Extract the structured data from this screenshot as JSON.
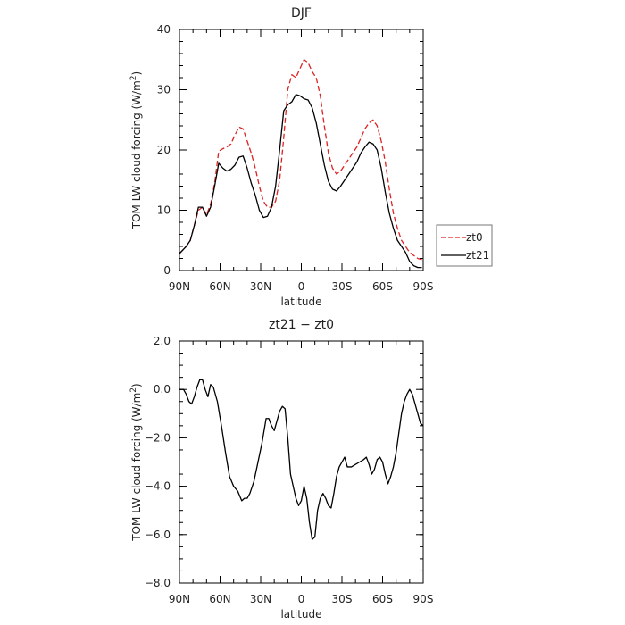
{
  "chart_data": [
    {
      "type": "line",
      "title": "DJF",
      "xlabel": "latitude",
      "ylabel": "TOM LW cloud forcing (W/m",
      "ylabel_sup": "2",
      "ylabel_close": ")",
      "xlim": [
        90,
        -90
      ],
      "ylim": [
        0,
        40
      ],
      "x_ticks": [
        90,
        60,
        30,
        0,
        -30,
        -60,
        -90
      ],
      "x_tick_labels": [
        "90N",
        "60N",
        "30N",
        "0",
        "30S",
        "60S",
        "90S"
      ],
      "y_ticks": [
        0,
        10,
        20,
        30,
        40
      ],
      "y_tick_labels": [
        "0",
        "10",
        "20",
        "30",
        "40"
      ],
      "legend": "outside-right",
      "series": [
        {
          "name": "zt0",
          "color": "#dd2222",
          "dash": "dashed",
          "x": [
            90,
            85,
            82,
            79,
            76,
            73,
            70,
            67,
            64,
            61,
            58,
            55,
            52,
            49,
            46,
            43,
            40,
            37,
            34,
            31,
            28,
            25,
            22,
            19,
            16,
            13,
            10,
            7,
            4,
            1,
            -2,
            -5,
            -8,
            -11,
            -14,
            -17,
            -20,
            -23,
            -26,
            -29,
            -32,
            -35,
            -38,
            -41,
            -44,
            -47,
            -50,
            -53,
            -56,
            -59,
            -62,
            -65,
            -68,
            -71,
            -74,
            -77,
            -80,
            -83,
            -86,
            -89
          ],
          "y": [
            2.8,
            4.0,
            5.0,
            7.5,
            10.0,
            10.5,
            9.2,
            11.0,
            14.5,
            19.8,
            20.2,
            20.5,
            21.0,
            22.5,
            23.8,
            23.5,
            21.5,
            19.5,
            17.0,
            14.0,
            11.5,
            10.5,
            10.5,
            11.5,
            15.0,
            22.0,
            30.0,
            32.5,
            32.0,
            33.5,
            35.0,
            34.5,
            33.0,
            32.0,
            29.0,
            24.0,
            19.5,
            17.0,
            16.0,
            16.5,
            17.5,
            18.5,
            19.5,
            20.5,
            22.0,
            23.5,
            24.5,
            25.0,
            24.0,
            21.5,
            18.0,
            13.5,
            9.5,
            7.0,
            5.0,
            4.0,
            3.0,
            2.5,
            2.0,
            1.8
          ]
        },
        {
          "name": "zt21",
          "color": "#000000",
          "dash": "solid",
          "x": [
            90,
            85,
            82,
            79,
            76,
            73,
            70,
            67,
            64,
            61,
            58,
            55,
            52,
            49,
            46,
            43,
            40,
            37,
            34,
            31,
            28,
            25,
            22,
            19,
            16,
            13,
            10,
            7,
            4,
            1,
            -2,
            -5,
            -8,
            -11,
            -14,
            -17,
            -20,
            -23,
            -26,
            -29,
            -32,
            -35,
            -38,
            -41,
            -44,
            -47,
            -50,
            -53,
            -56,
            -59,
            -62,
            -65,
            -68,
            -71,
            -74,
            -77,
            -80,
            -83,
            -86,
            -89
          ],
          "y": [
            2.8,
            4.0,
            5.0,
            7.5,
            10.5,
            10.5,
            9.0,
            10.5,
            14.0,
            17.8,
            17.0,
            16.5,
            16.8,
            17.5,
            18.8,
            19.0,
            17.0,
            14.5,
            12.5,
            10.0,
            8.8,
            9.0,
            10.5,
            14.0,
            20.0,
            26.5,
            27.5,
            28.0,
            29.2,
            29.0,
            28.5,
            28.3,
            27.0,
            24.5,
            21.0,
            17.5,
            14.8,
            13.5,
            13.2,
            14.0,
            15.0,
            16.0,
            17.0,
            18.0,
            19.5,
            20.5,
            21.3,
            21.0,
            20.0,
            17.0,
            13.0,
            9.5,
            7.0,
            5.0,
            4.0,
            3.0,
            1.5,
            0.8,
            0.5,
            0.5
          ]
        }
      ]
    },
    {
      "type": "line",
      "title": "zt21 − zt0",
      "xlabel": "latitude",
      "ylabel": "TOM LW cloud forcing (W/m",
      "ylabel_sup": "2",
      "ylabel_close": ")",
      "xlim": [
        90,
        -90
      ],
      "ylim": [
        -8,
        2
      ],
      "x_ticks": [
        90,
        60,
        30,
        0,
        -30,
        -60,
        -90
      ],
      "x_tick_labels": [
        "90N",
        "60N",
        "30N",
        "0",
        "30S",
        "60S",
        "90S"
      ],
      "y_ticks": [
        -8,
        -6,
        -4,
        -2,
        0,
        2
      ],
      "y_tick_labels": [
        "−8.0",
        "−6.0",
        "−4.0",
        "−2.0",
        "0.0",
        "2.0"
      ],
      "series": [
        {
          "color": "#000000",
          "dash": "solid",
          "x": [
            90,
            87,
            85,
            83,
            81,
            79,
            77,
            75,
            73,
            71,
            69,
            67,
            65,
            62,
            59,
            56,
            53,
            50,
            47,
            44,
            42,
            40,
            38,
            35,
            32,
            29,
            26,
            24,
            22,
            20,
            18,
            16,
            14,
            12,
            10,
            8,
            6,
            4,
            2,
            0,
            -2,
            -4,
            -6,
            -8,
            -10,
            -12,
            -14,
            -16,
            -18,
            -20,
            -22,
            -24,
            -26,
            -28,
            -30,
            -32,
            -34,
            -37,
            -40,
            -43,
            -46,
            -48,
            -50,
            -52,
            -54,
            -56,
            -58,
            -60,
            -62,
            -64,
            -66,
            -68,
            -70,
            -72,
            -74,
            -76,
            -78,
            -80,
            -82,
            -84,
            -86,
            -88,
            -90
          ],
          "y": [
            0.0,
            0.0,
            -0.2,
            -0.5,
            -0.6,
            -0.3,
            0.1,
            0.4,
            0.4,
            0.0,
            -0.3,
            0.2,
            0.1,
            -0.5,
            -1.5,
            -2.6,
            -3.6,
            -4.0,
            -4.2,
            -4.6,
            -4.5,
            -4.5,
            -4.3,
            -3.8,
            -3.0,
            -2.2,
            -1.2,
            -1.2,
            -1.5,
            -1.7,
            -1.3,
            -0.9,
            -0.7,
            -0.8,
            -2.0,
            -3.5,
            -4.0,
            -4.5,
            -4.8,
            -4.6,
            -4.0,
            -4.5,
            -5.5,
            -6.2,
            -6.1,
            -5.0,
            -4.5,
            -4.3,
            -4.5,
            -4.8,
            -4.9,
            -4.3,
            -3.6,
            -3.2,
            -3.0,
            -2.8,
            -3.2,
            -3.2,
            -3.1,
            -3.0,
            -2.9,
            -2.8,
            -3.1,
            -3.5,
            -3.3,
            -2.9,
            -2.8,
            -3.0,
            -3.5,
            -3.9,
            -3.6,
            -3.2,
            -2.6,
            -1.8,
            -1.0,
            -0.5,
            -0.2,
            0.0,
            -0.2,
            -0.6,
            -1.0,
            -1.4,
            -1.5
          ]
        }
      ]
    }
  ]
}
